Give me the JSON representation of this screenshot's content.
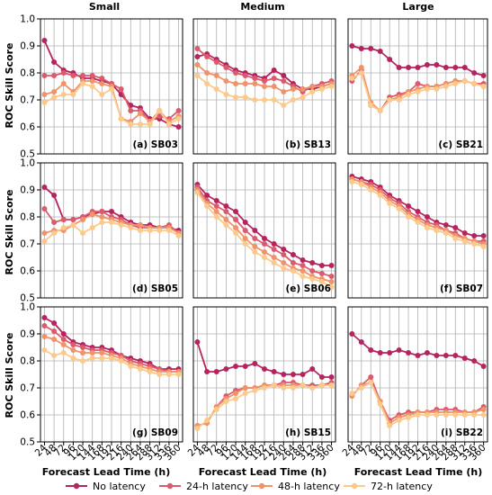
{
  "chart_data": {
    "type": "line",
    "ylabel": "ROC Skill Score",
    "xlabel": "Forecast Lead Time (h)",
    "ylim": [
      0.5,
      1.0
    ],
    "yticks": [
      "0.5",
      "0.6",
      "0.7",
      "0.8",
      "0.9",
      "1.0"
    ],
    "x": [
      24,
      48,
      72,
      96,
      120,
      144,
      168,
      192,
      216,
      240,
      264,
      288,
      312,
      336,
      360
    ],
    "xtick_labels": [
      "24",
      "48",
      "72",
      "96",
      "120",
      "144",
      "168",
      "192",
      "216",
      "240",
      "264",
      "288",
      "312",
      "336",
      "360"
    ],
    "grid": true,
    "legend_position": "bottom-center",
    "columns": [
      "Small",
      "Medium",
      "Large"
    ],
    "series_names": [
      "No latency",
      "24-h latency",
      "48-h latency",
      "72-h latency"
    ],
    "series_colors": [
      "#b5245f",
      "#db5a6e",
      "#f0926a",
      "#fcc98a"
    ],
    "panels": [
      {
        "label": "(a) SB03",
        "series": [
          [
            0.92,
            0.84,
            0.81,
            0.8,
            0.78,
            0.78,
            0.77,
            0.76,
            0.72,
            0.68,
            0.67,
            0.63,
            0.63,
            0.61,
            0.6
          ],
          [
            0.79,
            0.79,
            0.8,
            0.79,
            0.79,
            0.79,
            0.78,
            0.76,
            0.74,
            0.66,
            0.66,
            0.62,
            0.64,
            0.63,
            0.66
          ],
          [
            0.72,
            0.73,
            0.76,
            0.73,
            0.77,
            0.77,
            0.76,
            0.75,
            0.63,
            0.62,
            0.65,
            0.62,
            0.66,
            0.62,
            0.64
          ],
          [
            0.69,
            0.71,
            0.72,
            0.72,
            0.76,
            0.75,
            0.72,
            0.74,
            0.63,
            0.61,
            0.61,
            0.61,
            0.66,
            0.61,
            0.63
          ]
        ]
      },
      {
        "label": "(b) SB13",
        "series": [
          [
            0.86,
            0.87,
            0.85,
            0.83,
            0.81,
            0.8,
            0.79,
            0.78,
            0.81,
            0.79,
            0.76,
            0.74,
            0.74,
            0.75,
            0.76
          ],
          [
            0.89,
            0.86,
            0.84,
            0.82,
            0.8,
            0.79,
            0.78,
            0.77,
            0.78,
            0.77,
            0.75,
            0.73,
            0.75,
            0.76,
            0.77
          ],
          [
            0.83,
            0.8,
            0.79,
            0.77,
            0.76,
            0.76,
            0.76,
            0.75,
            0.75,
            0.73,
            0.74,
            0.74,
            0.75,
            0.75,
            0.76
          ],
          [
            0.79,
            0.76,
            0.74,
            0.72,
            0.71,
            0.71,
            0.7,
            0.7,
            0.7,
            0.68,
            0.7,
            0.71,
            0.73,
            0.74,
            0.75
          ]
        ]
      },
      {
        "label": "(c) SB21",
        "series": [
          [
            0.9,
            0.89,
            0.89,
            0.88,
            0.85,
            0.82,
            0.82,
            0.82,
            0.83,
            0.83,
            0.82,
            0.82,
            0.82,
            0.8,
            0.79
          ],
          [
            0.77,
            0.81,
            0.68,
            0.66,
            0.71,
            0.72,
            0.73,
            0.76,
            0.75,
            0.75,
            0.76,
            0.77,
            0.77,
            0.76,
            0.76
          ],
          [
            0.79,
            0.82,
            0.69,
            0.66,
            0.7,
            0.71,
            0.73,
            0.74,
            0.75,
            0.75,
            0.76,
            0.77,
            0.77,
            0.76,
            0.75
          ],
          [
            0.78,
            0.8,
            0.68,
            0.66,
            0.7,
            0.7,
            0.72,
            0.73,
            0.74,
            0.74,
            0.75,
            0.76,
            0.77,
            0.76,
            0.75
          ]
        ]
      },
      {
        "label": "(d) SB05",
        "series": [
          [
            0.91,
            0.88,
            0.79,
            0.79,
            0.8,
            0.81,
            0.82,
            0.82,
            0.8,
            0.78,
            0.77,
            0.77,
            0.76,
            0.76,
            0.75
          ],
          [
            0.83,
            0.78,
            0.79,
            0.79,
            0.8,
            0.82,
            0.82,
            0.8,
            0.79,
            0.77,
            0.76,
            0.76,
            0.76,
            0.77,
            0.74
          ],
          [
            0.74,
            0.75,
            0.75,
            0.77,
            0.79,
            0.81,
            0.8,
            0.79,
            0.78,
            0.77,
            0.77,
            0.76,
            0.76,
            0.76,
            0.74
          ],
          [
            0.71,
            0.74,
            0.76,
            0.77,
            0.74,
            0.76,
            0.78,
            0.78,
            0.77,
            0.76,
            0.75,
            0.75,
            0.75,
            0.75,
            0.73
          ]
        ]
      },
      {
        "label": "(e) SB06",
        "series": [
          [
            0.92,
            0.88,
            0.86,
            0.84,
            0.82,
            0.78,
            0.75,
            0.72,
            0.7,
            0.68,
            0.66,
            0.64,
            0.63,
            0.62,
            0.62
          ],
          [
            0.91,
            0.86,
            0.84,
            0.82,
            0.79,
            0.75,
            0.72,
            0.7,
            0.68,
            0.66,
            0.63,
            0.62,
            0.6,
            0.59,
            0.58
          ],
          [
            0.9,
            0.85,
            0.82,
            0.79,
            0.76,
            0.72,
            0.69,
            0.67,
            0.65,
            0.63,
            0.61,
            0.6,
            0.58,
            0.57,
            0.56
          ],
          [
            0.89,
            0.84,
            0.8,
            0.77,
            0.74,
            0.7,
            0.67,
            0.65,
            0.63,
            0.61,
            0.6,
            0.58,
            0.57,
            0.56,
            0.54
          ]
        ]
      },
      {
        "label": "(f) SB07",
        "series": [
          [
            0.95,
            0.94,
            0.93,
            0.91,
            0.88,
            0.86,
            0.84,
            0.82,
            0.8,
            0.78,
            0.77,
            0.76,
            0.74,
            0.73,
            0.73
          ],
          [
            0.94,
            0.93,
            0.92,
            0.9,
            0.87,
            0.85,
            0.82,
            0.8,
            0.78,
            0.77,
            0.75,
            0.74,
            0.72,
            0.71,
            0.71
          ],
          [
            0.94,
            0.93,
            0.91,
            0.89,
            0.86,
            0.84,
            0.81,
            0.79,
            0.77,
            0.76,
            0.75,
            0.73,
            0.72,
            0.71,
            0.7
          ],
          [
            0.93,
            0.92,
            0.9,
            0.88,
            0.85,
            0.83,
            0.8,
            0.78,
            0.76,
            0.75,
            0.74,
            0.72,
            0.71,
            0.7,
            0.69
          ]
        ]
      },
      {
        "label": "(g) SB09",
        "series": [
          [
            0.96,
            0.94,
            0.9,
            0.87,
            0.86,
            0.85,
            0.85,
            0.84,
            0.82,
            0.81,
            0.8,
            0.79,
            0.77,
            0.77,
            0.77
          ],
          [
            0.93,
            0.91,
            0.88,
            0.86,
            0.85,
            0.84,
            0.84,
            0.83,
            0.82,
            0.8,
            0.79,
            0.78,
            0.77,
            0.76,
            0.76
          ],
          [
            0.89,
            0.88,
            0.86,
            0.84,
            0.83,
            0.83,
            0.83,
            0.82,
            0.81,
            0.79,
            0.78,
            0.77,
            0.76,
            0.76,
            0.76
          ],
          [
            0.84,
            0.82,
            0.83,
            0.81,
            0.8,
            0.81,
            0.81,
            0.81,
            0.8,
            0.78,
            0.77,
            0.76,
            0.75,
            0.75,
            0.75
          ]
        ]
      },
      {
        "label": "(h) SB15",
        "series": [
          [
            0.87,
            0.76,
            0.76,
            0.77,
            0.78,
            0.78,
            0.79,
            0.77,
            0.76,
            0.75,
            0.75,
            0.75,
            0.77,
            0.74,
            0.74
          ],
          [
            0.56,
            0.57,
            0.63,
            0.67,
            0.69,
            0.7,
            0.7,
            0.71,
            0.71,
            0.72,
            0.72,
            0.71,
            0.71,
            0.71,
            0.72
          ],
          [
            0.56,
            0.57,
            0.63,
            0.66,
            0.68,
            0.7,
            0.7,
            0.71,
            0.71,
            0.71,
            0.71,
            0.71,
            0.7,
            0.71,
            0.71
          ],
          [
            0.55,
            0.58,
            0.62,
            0.65,
            0.66,
            0.68,
            0.69,
            0.7,
            0.71,
            0.7,
            0.7,
            0.71,
            0.7,
            0.71,
            0.71
          ]
        ]
      },
      {
        "label": "(i) SB22",
        "series": [
          [
            0.9,
            0.87,
            0.84,
            0.83,
            0.83,
            0.84,
            0.83,
            0.82,
            0.83,
            0.82,
            0.82,
            0.82,
            0.81,
            0.8,
            0.78
          ],
          [
            0.67,
            0.71,
            0.74,
            0.65,
            0.58,
            0.6,
            0.61,
            0.61,
            0.61,
            0.62,
            0.62,
            0.62,
            0.61,
            0.61,
            0.63
          ],
          [
            0.67,
            0.71,
            0.72,
            0.65,
            0.57,
            0.59,
            0.6,
            0.61,
            0.61,
            0.61,
            0.61,
            0.61,
            0.61,
            0.61,
            0.62
          ],
          [
            0.68,
            0.7,
            0.72,
            0.64,
            0.56,
            0.58,
            0.59,
            0.6,
            0.6,
            0.6,
            0.6,
            0.6,
            0.6,
            0.6,
            0.6
          ]
        ]
      }
    ]
  }
}
